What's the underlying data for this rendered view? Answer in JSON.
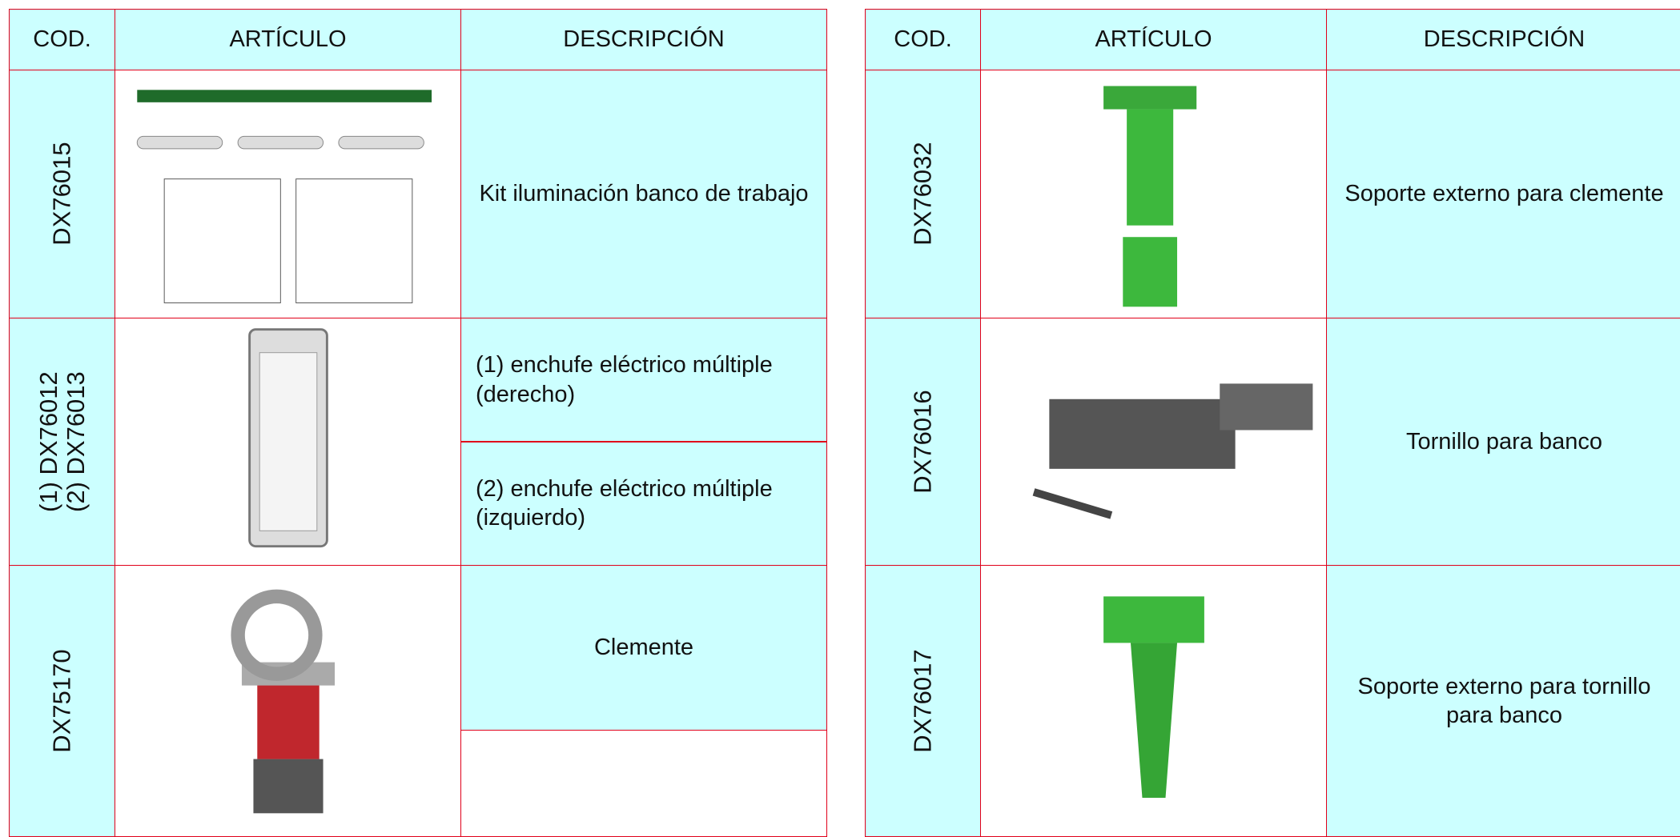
{
  "tables": [
    {
      "header": [
        "COD.",
        "ARTÍCULO",
        "DESCRIPCIÓN"
      ],
      "rows": [
        {
          "code": [
            "DX76015"
          ],
          "description": [
            "Kit iluminación banco de trabajo"
          ]
        },
        {
          "code": [
            "(1) DX76012",
            "(2) DX76013"
          ],
          "description": [
            "(1) enchufe eléctrico múltiple (derecho)",
            "(2) enchufe eléctrico múltiple (izquierdo)"
          ]
        },
        {
          "code": [
            "DX75170"
          ],
          "description": [
            "Clemente"
          ]
        }
      ]
    },
    {
      "header": [
        "COD.",
        "ARTÍCULO",
        "DESCRIPCIÓN"
      ],
      "rows": [
        {
          "code": [
            "DX76032"
          ],
          "description": [
            "Soporte externo para clemente"
          ]
        },
        {
          "code": [
            "DX76016"
          ],
          "description": [
            "Tornillo para banco"
          ]
        },
        {
          "code": [
            "DX76017"
          ],
          "description": [
            "Soporte externo para tornillo para banco"
          ]
        }
      ]
    }
  ]
}
